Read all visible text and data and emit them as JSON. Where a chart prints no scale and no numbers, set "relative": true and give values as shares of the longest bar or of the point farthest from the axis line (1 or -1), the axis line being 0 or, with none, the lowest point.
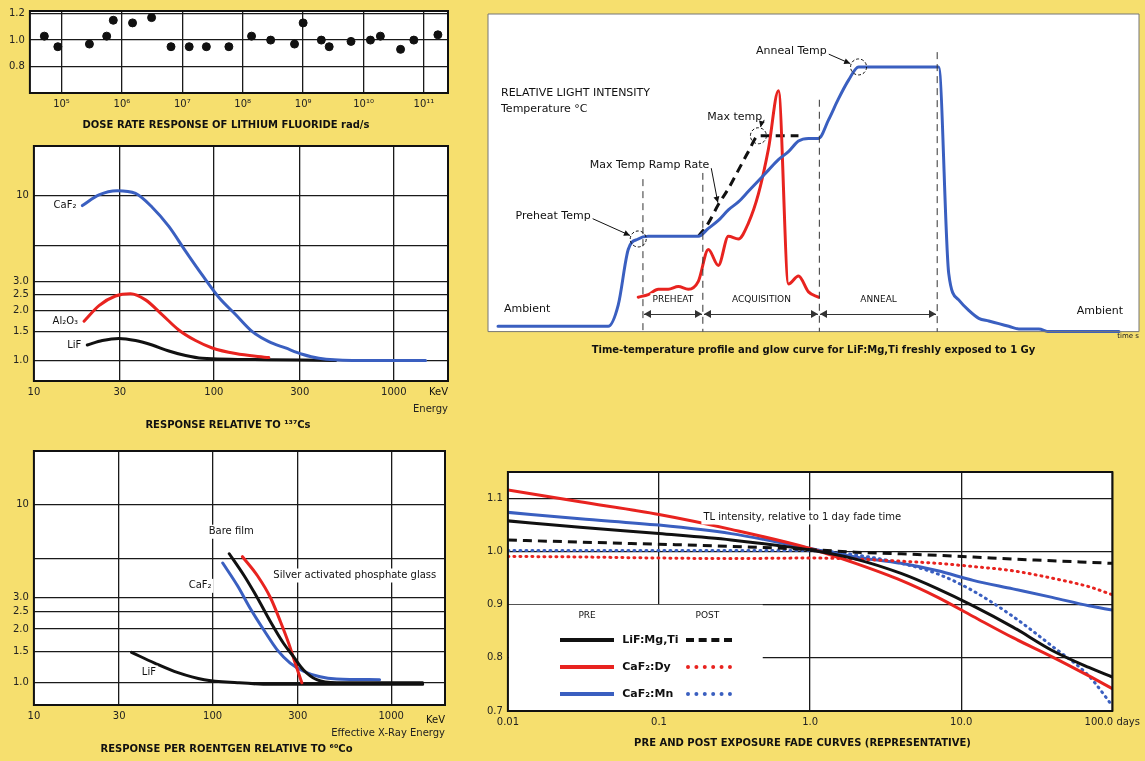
{
  "chart_data": [
    {
      "type": "scatter",
      "title": "DOSE RATE RESPONSE OF LITHIUM FLUORIDE rad/s",
      "color": "#111111",
      "marker": "circle",
      "log": "x",
      "grid": true,
      "x": [
        52000.0,
        87000.0,
        290000.0,
        560000.0,
        720000.0,
        1500000.0,
        3100000.0,
        6500000.0,
        13000000.0,
        25000000.0,
        59000000.0,
        140000000.0,
        290000000.0,
        720000000.0,
        1000000000.0,
        2000000000.0,
        2700000000.0,
        6200000000.0,
        13000000000.0,
        19000000000.0,
        41000000000.0,
        68000000000.0,
        170000000000.0
      ],
      "values": [
        1.03,
        0.95,
        0.97,
        1.03,
        1.15,
        1.13,
        1.17,
        0.95,
        0.95,
        0.95,
        0.95,
        1.03,
        1.0,
        0.97,
        1.13,
        1.0,
        0.95,
        0.99,
        1.0,
        1.03,
        0.93,
        1.0,
        1.04
      ],
      "xlim": [
        30000,
        250000000000
      ],
      "xticks": [
        {
          "value": 100000,
          "label": "10⁵"
        },
        {
          "value": 1000000,
          "label": "10⁶"
        },
        {
          "value": 10000000,
          "label": "10⁷"
        },
        {
          "value": 100000000,
          "label": "10⁸"
        },
        {
          "value": 1000000000,
          "label": "10⁹"
        },
        {
          "value": 10000000000,
          "label": "10¹⁰"
        },
        {
          "value": 100000000000,
          "label": "10¹¹"
        }
      ],
      "ylim": [
        0.6,
        1.22
      ],
      "yticks": [
        0.8,
        {
          "value": 1,
          "label": "1.0"
        },
        1.2
      ]
    },
    {
      "type": "line",
      "relative": true,
      "title": "Time-temperature profile and glow curve for LiF:Mg,Ti freshly exposed to 1 Gy",
      "xlabel": "time s",
      "categories": [
        null,
        null,
        null,
        null,
        null,
        null,
        null,
        null,
        null,
        null,
        null,
        null,
        null,
        null,
        null,
        null,
        null,
        null,
        null,
        null,
        null,
        null,
        null,
        null,
        null,
        null,
        null,
        null,
        null,
        null,
        null,
        null,
        null,
        null,
        null,
        null,
        null,
        null,
        null,
        null,
        null,
        null,
        null,
        null,
        null,
        null,
        null,
        null,
        null,
        null,
        null,
        null,
        null,
        null,
        null,
        null,
        null,
        null,
        null,
        null,
        null,
        null,
        null,
        null,
        null,
        null
      ],
      "series": [
        {
          "color": "#3a5fc0",
          "values": [
            null,
            0.02,
            0.02,
            0.02,
            0.02,
            0.02,
            0.02,
            0.02,
            0.02,
            0.02,
            0.02,
            0.02,
            0.02,
            0.1,
            0.31,
            0.35,
            0.36,
            0.36,
            0.36,
            0.36,
            0.36,
            0.36,
            0.39,
            0.42,
            0.46,
            0.49,
            0.53,
            0.57,
            0.61,
            0.65,
            0.68,
            0.72,
            0.73,
            0.73,
            0.8,
            0.88,
            0.95,
            1,
            1,
            1,
            1,
            1,
            1,
            1,
            1,
            1,
            0.22,
            0.12,
            0.08,
            0.05,
            0.04,
            0.03,
            0.02,
            0.01,
            0.01,
            0.01,
            0,
            0,
            0,
            0,
            0,
            0,
            0,
            0,
            null,
            null
          ]
        },
        {
          "color": "#e8231f",
          "values": [
            null,
            null,
            null,
            null,
            null,
            null,
            null,
            null,
            null,
            null,
            null,
            null,
            null,
            null,
            null,
            0.13,
            0.14,
            0.16,
            0.16,
            0.17,
            0.16,
            0.19,
            0.31,
            0.25,
            0.36,
            0.35,
            0.41,
            0.52,
            0.69,
            0.91,
            0.18,
            0.21,
            0.15,
            0.13,
            null,
            null,
            null,
            null,
            null,
            null,
            null,
            null,
            null,
            null,
            null,
            null,
            null,
            null,
            null,
            null,
            null,
            null,
            null,
            null,
            null,
            null,
            null,
            null,
            null,
            null,
            null,
            null,
            null,
            null,
            null,
            null
          ]
        },
        {
          "color": "#111111",
          "line_style": "dashed",
          "values": [
            null,
            null,
            null,
            null,
            null,
            null,
            null,
            null,
            null,
            null,
            null,
            null,
            null,
            null,
            null,
            null,
            null,
            null,
            null,
            null,
            null,
            0.36,
            0.41,
            0.48,
            0.54,
            0.61,
            0.68,
            0.74,
            0.74,
            0.74,
            0.74,
            0.74,
            null,
            null,
            null,
            null,
            null,
            null,
            null,
            null,
            null,
            null,
            null,
            null,
            null,
            null,
            null,
            null,
            null,
            null,
            null,
            null,
            null,
            null,
            null,
            null,
            null,
            null,
            null,
            null,
            null,
            null,
            null,
            null,
            null,
            null
          ]
        }
      ],
      "annotations": [
        "RELATIVE LIGHT INTENSITY",
        "Temperature °C",
        "Preheat Temp",
        "Max Temp Ramp Rate",
        "Max temp",
        "Anneal Temp",
        "Ambient",
        "Ambient",
        "PREHEAT",
        "ACQUISITION",
        "ANNEAL"
      ]
    },
    {
      "type": "line",
      "title": "RESPONSE RELATIVE TO ¹³⁷Cs",
      "xlabel": "Energy",
      "annotations": [
        "KeV"
      ],
      "log": "xy",
      "grid": true,
      "xlim": [
        10,
        2000
      ],
      "xticks": [
        10,
        30,
        100,
        300,
        1000
      ],
      "ylim": [
        0.75,
        20
      ],
      "yticks": [
        {
          "value": 1,
          "label": "1.0"
        },
        1.5,
        {
          "value": 2,
          "label": "2.0"
        },
        2.5,
        {
          "value": 3,
          "label": "3.0"
        },
        {
          "value": 5,
          "label": null
        },
        10
      ],
      "series": [
        {
          "name": "CaF₂",
          "color": "#3a5fc0",
          "x": [
            18.6,
            23,
            29,
            36.7,
            45.4,
            56.2,
            69.6,
            86.1,
            107,
            132,
            163,
            202,
            250,
            310,
            383,
            587,
            1500
          ],
          "values": [
            8.7,
            10.1,
            10.7,
            10.3,
            8.5,
            6.5,
            4.6,
            3.3,
            2.4,
            1.9,
            1.5,
            1.3,
            1.19,
            1.09,
            1.03,
            1.0,
            1.0
          ]
        },
        {
          "name": "Al₂O₃",
          "color": "#e8231f",
          "x": [
            19,
            23,
            28.4,
            34.4,
            41.7,
            51.7,
            63.8,
            79.1,
            97.9,
            132,
            202
          ],
          "values": [
            1.73,
            2.15,
            2.46,
            2.54,
            2.33,
            1.89,
            1.53,
            1.32,
            1.19,
            1.1,
            1.04
          ]
        },
        {
          "name": "LiF",
          "color": "#111111",
          "x": [
            19.8,
            24,
            29.7,
            36.7,
            45.4,
            56.2,
            69.6,
            86.1,
            202,
            476
          ],
          "values": [
            1.24,
            1.32,
            1.36,
            1.32,
            1.24,
            1.14,
            1.07,
            1.03,
            1.01,
            1.0
          ]
        }
      ]
    },
    {
      "type": "line",
      "title": "RESPONSE PER ROENTGEN RELATIVE TO ⁶⁰Co",
      "xlabel": "Effective X-Ray Energy",
      "annotations": [
        "KeV"
      ],
      "log": "xy",
      "grid": true,
      "xlim": [
        10,
        2000
      ],
      "xticks": [
        10,
        30,
        100,
        300,
        1000
      ],
      "ylim": [
        0.75,
        20
      ],
      "yticks": [
        {
          "value": 1,
          "label": "1.0"
        },
        1.5,
        {
          "value": 2,
          "label": "2.0"
        },
        2.5,
        {
          "value": 3,
          "label": "3.0"
        },
        {
          "value": 5,
          "label": null
        },
        10
      ],
      "series": [
        {
          "name": "Bare film",
          "color": "#111111",
          "x": [
            124,
            150,
            178,
            211,
            250,
            284,
            323,
            383,
            495,
            1500
          ],
          "values": [
            5.3,
            4.0,
            3.0,
            2.2,
            1.66,
            1.4,
            1.18,
            1.04,
            1.0,
            1.0
          ]
        },
        {
          "name": "Silver activated phosphate glass",
          "color": "#e8231f",
          "x": [
            147,
            178,
            211,
            240,
            267,
            290,
            316
          ],
          "values": [
            5.1,
            4.0,
            3.0,
            2.2,
            1.66,
            1.29,
            1.0
          ]
        },
        {
          "name": "CaF₂",
          "color": "#3a5fc0",
          "x": [
            114,
            138,
            163,
            194,
            230,
            272,
            323,
            400,
            495,
            861
          ],
          "values": [
            4.7,
            3.5,
            2.6,
            1.97,
            1.53,
            1.29,
            1.16,
            1.08,
            1.05,
            1.04
          ]
        },
        {
          "name": "LiF",
          "color": "#111111",
          "x": [
            35.2,
            47.4,
            64,
            89.9,
            138,
            211,
            1500
          ],
          "values": [
            1.48,
            1.29,
            1.14,
            1.04,
            1.0,
            0.98,
            0.98
          ]
        }
      ]
    },
    {
      "type": "line",
      "title": "PRE AND POST EXPOSURE FADE CURVES (REPRESENTATIVE)",
      "annotations": [
        "TL intensity, relative to 1 day fade time",
        "PRE",
        "POST"
      ],
      "log": "x",
      "grid": true,
      "legend": "bottom left",
      "xlim": [
        0.01,
        100
      ],
      "xticks": [
        0.01,
        0.1,
        {
          "value": 1,
          "label": "1.0"
        },
        {
          "value": 10,
          "label": "10.0"
        },
        {
          "value": 100,
          "label": "100.0 days"
        }
      ],
      "ylim": [
        0.7,
        1.15
      ],
      "yticks": [
        0.7,
        0.8,
        0.9,
        {
          "value": 1,
          "label": "1.0"
        },
        1.1
      ],
      "x": [
        0.01,
        0.03,
        0.1,
        0.3,
        1,
        2,
        4,
        7,
        12,
        22,
        40,
        70,
        100
      ],
      "series": [
        {
          "name": "LiF:Mg,Ti",
          "color": "#111111",
          "values": [
            1.058,
            1.046,
            1.034,
            1.022,
            1.003,
            0.986,
            0.959,
            0.93,
            0.898,
            0.858,
            0.814,
            0.782,
            0.764
          ]
        },
        {
          "color": "#111111",
          "line_style": "dashed",
          "values": [
            1.022,
            1.018,
            1.014,
            1.01,
            1.004,
            0.999,
            0.996,
            0.993,
            0.99,
            0.986,
            0.983,
            0.98,
            0.978
          ]
        },
        {
          "name": "CaF₂:Dy",
          "color": "#e8231f",
          "values": [
            1.116,
            1.094,
            1.07,
            1.042,
            1.006,
            0.978,
            0.946,
            0.914,
            0.878,
            0.838,
            0.802,
            0.766,
            0.742
          ]
        },
        {
          "color": "#e8231f",
          "line_style": "dotted",
          "values": [
            0.991,
            0.99,
            0.988,
            0.987,
            0.988,
            0.986,
            0.982,
            0.978,
            0.972,
            0.964,
            0.95,
            0.934,
            0.919
          ]
        },
        {
          "name": "CaF₂:Mn",
          "color": "#3a5fc0",
          "values": [
            1.074,
            1.062,
            1.05,
            1.034,
            1.006,
            0.99,
            0.978,
            0.964,
            0.946,
            0.93,
            0.914,
            0.898,
            0.89
          ]
        },
        {
          "color": "#3a5fc0",
          "line_style": "dotted",
          "values": [
            1.002,
            1.002,
            1.002,
            1.002,
            1.002,
            0.994,
            0.978,
            0.958,
            0.926,
            0.878,
            0.822,
            0.766,
            0.71
          ]
        }
      ]
    }
  ]
}
